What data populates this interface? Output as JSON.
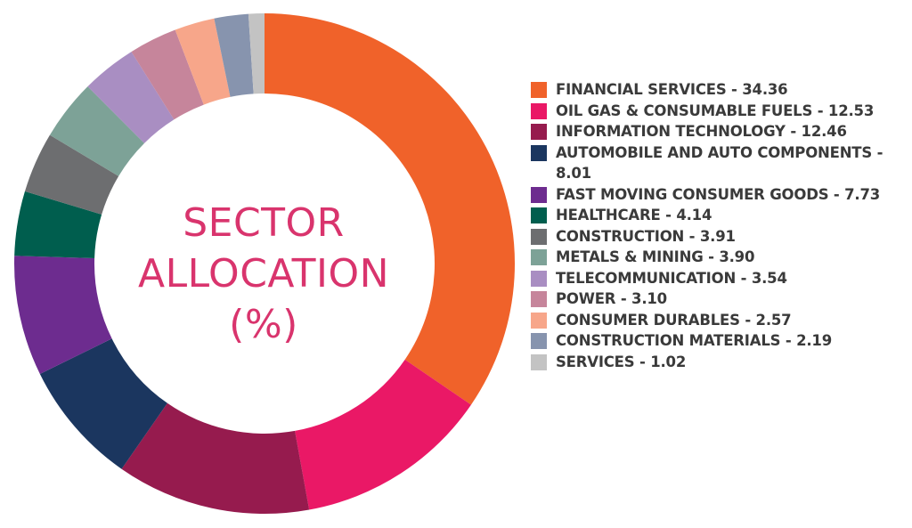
{
  "chart_data": {
    "type": "pie",
    "title": "SECTOR ALLOCATION (%)",
    "title_lines": [
      "SECTOR",
      "ALLOCATION",
      "(%)"
    ],
    "donut": true,
    "legend_position": "right",
    "slices": [
      {
        "label": "FINANCIAL SERVICES",
        "value": 34.36,
        "display_value": "34.36",
        "color": "#f0622a"
      },
      {
        "label": "OIL GAS & CONSUMABLE FUELS",
        "value": 12.53,
        "display_value": "12.53",
        "color": "#ea1866"
      },
      {
        "label": "INFORMATION TECHNOLOGY",
        "value": 12.46,
        "display_value": "12.46",
        "color": "#961b4e"
      },
      {
        "label": "AUTOMOBILE AND AUTO COMPONENTS",
        "value": 8.01,
        "display_value": "8.01",
        "color": "#1b365f"
      },
      {
        "label": "FAST MOVING CONSUMER GOODS",
        "value": 7.73,
        "display_value": "7.73",
        "color": "#6d2c8f"
      },
      {
        "label": "HEALTHCARE",
        "value": 4.14,
        "display_value": "4.14",
        "color": "#005e4e"
      },
      {
        "label": "CONSTRUCTION",
        "value": 3.91,
        "display_value": "3.91",
        "color": "#6d6e70"
      },
      {
        "label": "METALS & MINING",
        "value": 3.9,
        "display_value": "3.90",
        "color": "#7da297"
      },
      {
        "label": "TELECOMMUNICATION",
        "value": 3.54,
        "display_value": "3.54",
        "color": "#a98ec2"
      },
      {
        "label": "POWER",
        "value": 3.1,
        "display_value": "3.10",
        "color": "#c6859b"
      },
      {
        "label": "CONSUMER DURABLES",
        "value": 2.57,
        "display_value": "2.57",
        "color": "#f7a68a"
      },
      {
        "label": "CONSTRUCTION MATERIALS",
        "value": 2.19,
        "display_value": "2.19",
        "color": "#8794ae"
      },
      {
        "label": "SERVICES",
        "value": 1.02,
        "display_value": "1.02",
        "color": "#c3c3c3"
      }
    ]
  }
}
